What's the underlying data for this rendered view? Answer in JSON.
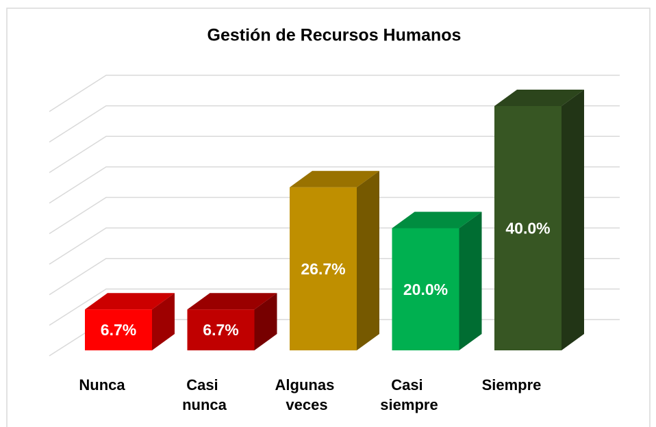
{
  "chart_data": {
    "type": "bar3d",
    "title": "Gestión de Recursos Humanos",
    "categories": [
      "Nunca",
      "Casi nunca",
      "Algunas veces",
      "Casi siempre",
      "Siempre"
    ],
    "values": [
      6.7,
      6.7,
      26.7,
      20.0,
      40.0
    ],
    "value_labels": [
      "6.7%",
      "6.7%",
      "26.7%",
      "20.0%",
      "40.0%"
    ],
    "colors": [
      "#ff0000",
      "#c00000",
      "#bf8f00",
      "#00b050",
      "#375623"
    ],
    "ylim": [
      0,
      40
    ],
    "yticks": [
      0,
      5,
      10,
      15,
      20,
      25,
      30,
      35,
      40
    ],
    "grid": true
  }
}
